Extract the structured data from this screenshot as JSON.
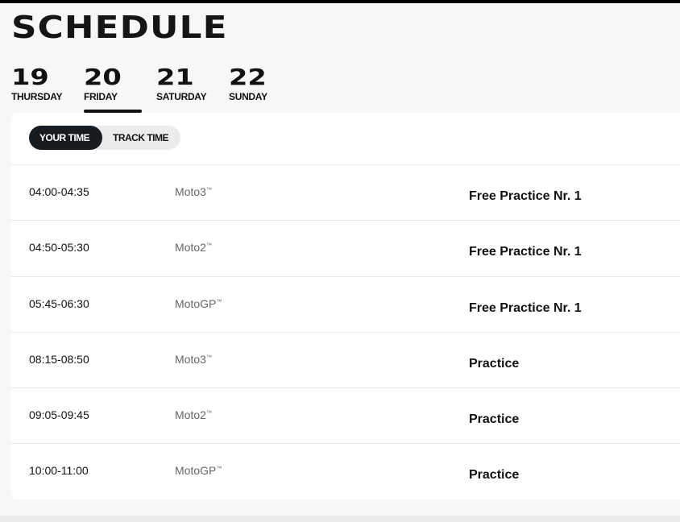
{
  "title": "SCHEDULE",
  "days": [
    {
      "num": "19",
      "name": "THURSDAY"
    },
    {
      "num": "20",
      "name": "FRIDAY",
      "selected": true
    },
    {
      "num": "21",
      "name": "SATURDAY"
    },
    {
      "num": "22",
      "name": "SUNDAY"
    }
  ],
  "toggle": {
    "your_time": "YOUR TIME",
    "track_time": "TRACK TIME",
    "selected": "YOUR TIME"
  },
  "tm": "™",
  "rows": [
    {
      "time": "04:00-04:35",
      "class": "Moto3",
      "session": "Free Practice Nr. 1"
    },
    {
      "time": "04:50-05:30",
      "class": "Moto2",
      "session": "Free Practice Nr. 1"
    },
    {
      "time": "05:45-06:30",
      "class": "MotoGP",
      "session": "Free Practice Nr. 1"
    },
    {
      "time": "08:15-08:50",
      "class": "Moto3",
      "session": "Practice"
    },
    {
      "time": "09:05-09:45",
      "class": "Moto2",
      "session": "Practice"
    },
    {
      "time": "10:00-11:00",
      "class": "MotoGP",
      "session": "Practice"
    }
  ]
}
